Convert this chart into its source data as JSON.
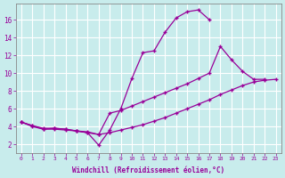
{
  "background_color": "#c8ecec",
  "grid_color": "#ffffff",
  "line_color": "#990099",
  "marker": "+",
  "xlabel": "Windchill (Refroidissement éolien,°C)",
  "ylabel_ticks": [
    2,
    4,
    6,
    8,
    10,
    12,
    14,
    16
  ],
  "xlim": [
    -0.5,
    23.5
  ],
  "ylim": [
    1.0,
    17.8
  ],
  "xticks": [
    0,
    1,
    2,
    3,
    4,
    5,
    6,
    7,
    8,
    9,
    10,
    11,
    12,
    13,
    14,
    15,
    16,
    17,
    18,
    19,
    20,
    21,
    22,
    23
  ],
  "line1_x": [
    0,
    1,
    2,
    3,
    4,
    5,
    6,
    7,
    8,
    9,
    10,
    11,
    12,
    13,
    14,
    15,
    16,
    17
  ],
  "line1_y": [
    4.5,
    4.1,
    3.7,
    3.8,
    3.7,
    3.5,
    3.3,
    1.9,
    3.6,
    6.0,
    9.4,
    12.3,
    12.5,
    14.6,
    16.2,
    16.9,
    17.1,
    16.0
  ],
  "line2_x": [
    0,
    1,
    2,
    3,
    4,
    5,
    6,
    7,
    8,
    9,
    10,
    11,
    12,
    13,
    14,
    15,
    16,
    17,
    18,
    19,
    20,
    21,
    22
  ],
  "line2_y": [
    4.5,
    4.1,
    3.8,
    3.8,
    3.7,
    3.5,
    3.4,
    3.1,
    5.5,
    5.8,
    6.3,
    6.8,
    7.3,
    7.8,
    8.3,
    8.8,
    9.4,
    10.0,
    13.0,
    11.5,
    10.2,
    9.3,
    9.3
  ],
  "line3_x": [
    0,
    1,
    2,
    3,
    4,
    5,
    6,
    7,
    8,
    9,
    10,
    11,
    12,
    13,
    14,
    15,
    16,
    17,
    18,
    19,
    20,
    21,
    22,
    23
  ],
  "line3_y": [
    4.5,
    4.0,
    3.7,
    3.7,
    3.6,
    3.5,
    3.3,
    3.1,
    3.3,
    3.6,
    3.9,
    4.2,
    4.6,
    5.0,
    5.5,
    6.0,
    6.5,
    7.0,
    7.6,
    8.1,
    8.6,
    9.0,
    9.2,
    9.3
  ]
}
